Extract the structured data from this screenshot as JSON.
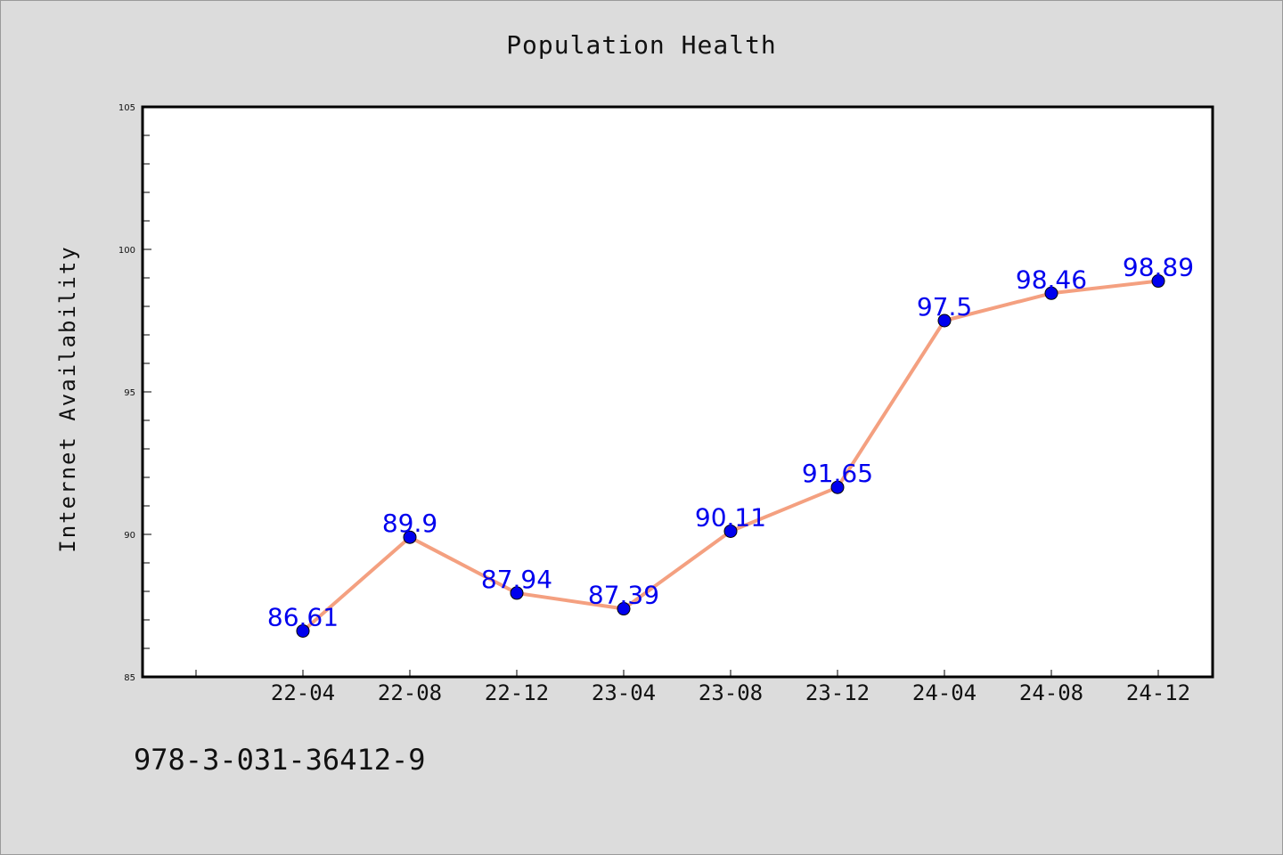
{
  "chart_data": {
    "type": "line",
    "title": "Population Health",
    "xlabel": "",
    "ylabel": "Internet Availability",
    "categories": [
      "22-04",
      "22-08",
      "22-12",
      "23-04",
      "23-08",
      "23-12",
      "24-04",
      "24-08",
      "24-12"
    ],
    "values": [
      86.61,
      89.9,
      87.94,
      87.39,
      90.11,
      91.65,
      97.5,
      98.46,
      98.89
    ],
    "data_labels": [
      "86.61",
      "89.9",
      "87.94",
      "87.39",
      "90.11",
      "91.65",
      "97.5",
      "98.46",
      "98.89"
    ],
    "ylim": [
      85,
      105
    ],
    "yticks": [
      "85",
      "90",
      "95",
      "100",
      "105"
    ],
    "grid": false,
    "line_color": "#f4a080",
    "marker_color": "#0000ee",
    "label_color": "#0000ee"
  },
  "footer": {
    "isbn": "978-3-031-36412-9"
  }
}
